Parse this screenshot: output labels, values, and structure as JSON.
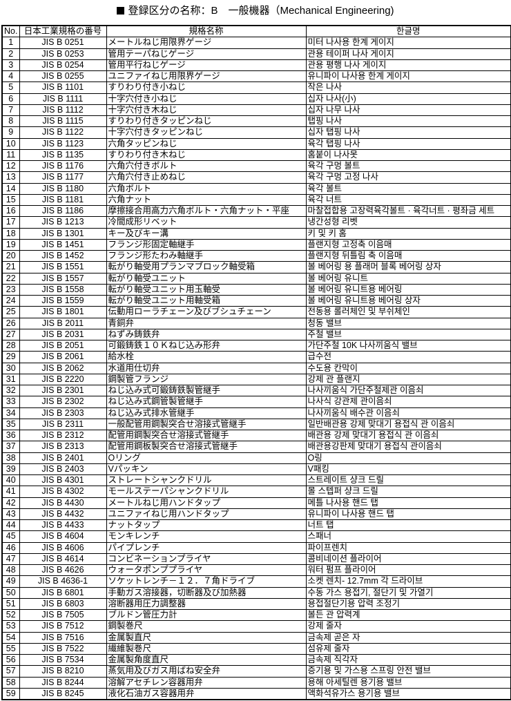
{
  "title": "登録区分の名称：B　一般機器（Mechanical Engineering)",
  "headers": [
    "No.",
    "日本工業規格の番号",
    "規格名称",
    "한글명"
  ],
  "rows": [
    [
      "1",
      "JIS B 0251",
      "メートルねじ用限界ゲージ",
      "미터 나사용 한계 게이지"
    ],
    [
      "2",
      "JIS B 0253",
      "管用テーパねじゲージ",
      "관용 테이퍼 나사 게이지"
    ],
    [
      "3",
      "JIS B 0254",
      "管用平行ねじゲージ",
      "관용 평행 나사 게이지"
    ],
    [
      "4",
      "JIS B 0255",
      "ユニファイねじ用限界ゲージ",
      "유니파이 나사용 한계 게이지"
    ],
    [
      "5",
      "JIS B 1101",
      "すりわり付き小ねじ",
      "작은 나사"
    ],
    [
      "6",
      "JIS B 1111",
      "十字穴付き小ねじ",
      "십자 나사(小)"
    ],
    [
      "7",
      "JIS B 1112",
      "十字穴付き木ねじ",
      "십자 나무 나사"
    ],
    [
      "8",
      "JIS B 1115",
      "すりわり付きタッピンねじ",
      "탭핑 나사"
    ],
    [
      "9",
      "JIS B 1122",
      "十字穴付きタッピンねじ",
      "십자 탭핑 나사"
    ],
    [
      "10",
      "JIS B 1123",
      "六角タッピンねじ",
      "육각 탭핑 나사"
    ],
    [
      "11",
      "JIS B 1135",
      "すりわり付き木ねじ",
      "홈붙이 나사못"
    ],
    [
      "12",
      "JIS B 1176",
      "六角穴付きボルト",
      "육각 구멍 볼트"
    ],
    [
      "13",
      "JIS B 1177",
      "六角穴付き止めねじ",
      "육각 구멍 고정 나사"
    ],
    [
      "14",
      "JIS B 1180",
      "六角ボルト",
      "육각 볼트"
    ],
    [
      "15",
      "JIS B 1181",
      "六角ナット",
      "육각 너트"
    ],
    [
      "16",
      "JIS B 1186",
      "摩擦接合用高力六角ボルト・六角ナット・平座",
      "마찰접합용 고장력육각볼트 · 육각너트 · 평좌금 세트"
    ],
    [
      "17",
      "JIS B 1213",
      "冷間成形リベット",
      "냉간성형 리벳"
    ],
    [
      "18",
      "JIS B 1301",
      "キー及びキー溝",
      "키 및 키 홈"
    ],
    [
      "19",
      "JIS B 1451",
      "フランジ形固定軸継手",
      "플랜지형 고정축 이음매"
    ],
    [
      "20",
      "JIS B 1452",
      "フランジ形たわみ軸継手",
      "플랜지형 뒤틀림 축 이음매"
    ],
    [
      "21",
      "JIS B 1551",
      "転がり軸受用プランマブロック軸受箱",
      "볼 베어링 용 플래머 블록 베어링 상자"
    ],
    [
      "22",
      "JIS B 1557",
      "転がり軸受ユニット",
      "볼 베어링 유니트"
    ],
    [
      "23",
      "JIS B 1558",
      "転がり軸受ユニット用玉軸受",
      "볼 베어링 유니트용 베어링"
    ],
    [
      "24",
      "JIS B 1559",
      "転がり軸受ユニット用軸受箱",
      "볼 베어링 유니트용 베어링 상자"
    ],
    [
      "25",
      "JIS B 1801",
      "伝動用ローラチェーン及びブシュチェーン",
      "전동용 롤러체인 및 부쉬체인"
    ],
    [
      "26",
      "JIS B 2011",
      "青銅弁",
      "청동 밸브"
    ],
    [
      "27",
      "JIS B 2031",
      "ねずみ鋳鉄弁",
      "주철 밸브"
    ],
    [
      "28",
      "JIS B 2051",
      "可鍛鋳鉄１０Ｋねじ込み形弁",
      "가단주철 10K 나사끼움식 밸브"
    ],
    [
      "29",
      "JIS B 2061",
      "給水栓",
      "급수전"
    ],
    [
      "30",
      "JIS B 2062",
      "水道用仕切弁",
      "수도용 칸막이"
    ],
    [
      "31",
      "JIS B 2220",
      "鋼製管フランジ",
      "강제 관 플랜지"
    ],
    [
      "32",
      "JIS B 2301",
      "ねじ込み式可鍛鋳鉄製管継手",
      "나사끼움식 가단주철제관 이음쇠"
    ],
    [
      "33",
      "JIS B 2302",
      "ねじ込み式鋼管製管継手",
      "나사식 강관제 관이음쇠"
    ],
    [
      "34",
      "JIS B 2303",
      "ねじ込み式排水管継手",
      "나사끼움식 배수관 이음쇠"
    ],
    [
      "35",
      "JIS B 2311",
      "一般配管用鋼製突合せ溶接式管継手",
      "일반배관용 강제 맞대기 용접식 관 이음쇠"
    ],
    [
      "36",
      "JIS B 2312",
      "配管用鋼製突合せ溶接式管継手",
      "배관용 강제 맞대기 용접식 관 이음쇠"
    ],
    [
      "37",
      "JIS B 2313",
      "配管用鋼板製突合せ溶接式管継手",
      "배관용강판제 맞대기 용접식 관이음쇠"
    ],
    [
      "38",
      "JIS B 2401",
      "Oリング",
      "O링"
    ],
    [
      "39",
      "JIS B 2403",
      "Vパッキン",
      "V패킹"
    ],
    [
      "40",
      "JIS B 4301",
      "ストレートシャンクドリル",
      "스트레이트 샹크 드릴"
    ],
    [
      "41",
      "JIS B 4302",
      "モールステーパシャンクドリル",
      "몰 스텝퍼 샹크 드릴"
    ],
    [
      "42",
      "JIS B 4430",
      "メートルねじ用ハンドタップ",
      "메틀 나사용 핸드 탭"
    ],
    [
      "43",
      "JIS B 4432",
      "ユニファイねじ用ハンドタップ",
      "유니파이 나사용 핸드 탭"
    ],
    [
      "44",
      "JIS B 4433",
      "ナットタップ",
      "너트 탭"
    ],
    [
      "45",
      "JIS B 4604",
      "モンキレンチ",
      "스패너"
    ],
    [
      "46",
      "JIS B 4606",
      "パイプレンチ",
      "파이프렌치"
    ],
    [
      "47",
      "JIS B 4614",
      "コンビネーションプライヤ",
      "콤비네이션 플라이어"
    ],
    [
      "48",
      "JIS B 4626",
      "ウォータポンププライヤ",
      "워터 펌프 플라이어"
    ],
    [
      "49",
      "JIS B 4636-1",
      "ソケットレンチ－１２．７角ドライブ",
      "소켓 렌치- 12.7mm 각 드라이브"
    ],
    [
      "50",
      "JIS B 6801",
      "手動ガス溶接器，切断器及び加熱器",
      "수동 가스 용접기, 절단기 및 가열기"
    ],
    [
      "51",
      "JIS B 6803",
      "溶断器用圧力調整器",
      "용접절단기용 압력 조정기"
    ],
    [
      "52",
      "JIS B 7505",
      "ブルドン管圧力計",
      "볼든 관 압력계"
    ],
    [
      "53",
      "JIS B 7512",
      "鋼製巻尺",
      "강제 줄자"
    ],
    [
      "54",
      "JIS B 7516",
      "金属製直尺",
      "금속제 곧은 자"
    ],
    [
      "55",
      "JIS B 7522",
      "繊維製巻尺",
      "섬유제 줄자"
    ],
    [
      "56",
      "JIS B 7534",
      "金属製角度直尺",
      "금속제 직각자"
    ],
    [
      "57",
      "JIS B 8210",
      "蒸気用及びガス用ばね安全弁",
      "증기용 및 가스용 스프링 안전 밸브"
    ],
    [
      "58",
      "JIS B 8244",
      "溶解アセチレン容器用弁",
      "용해 아세틸렌 용기용 밸브"
    ],
    [
      "59",
      "JIS B 8245",
      "液化石油ガス容器用弁",
      "액화석유가스 용기용 밸브"
    ]
  ]
}
